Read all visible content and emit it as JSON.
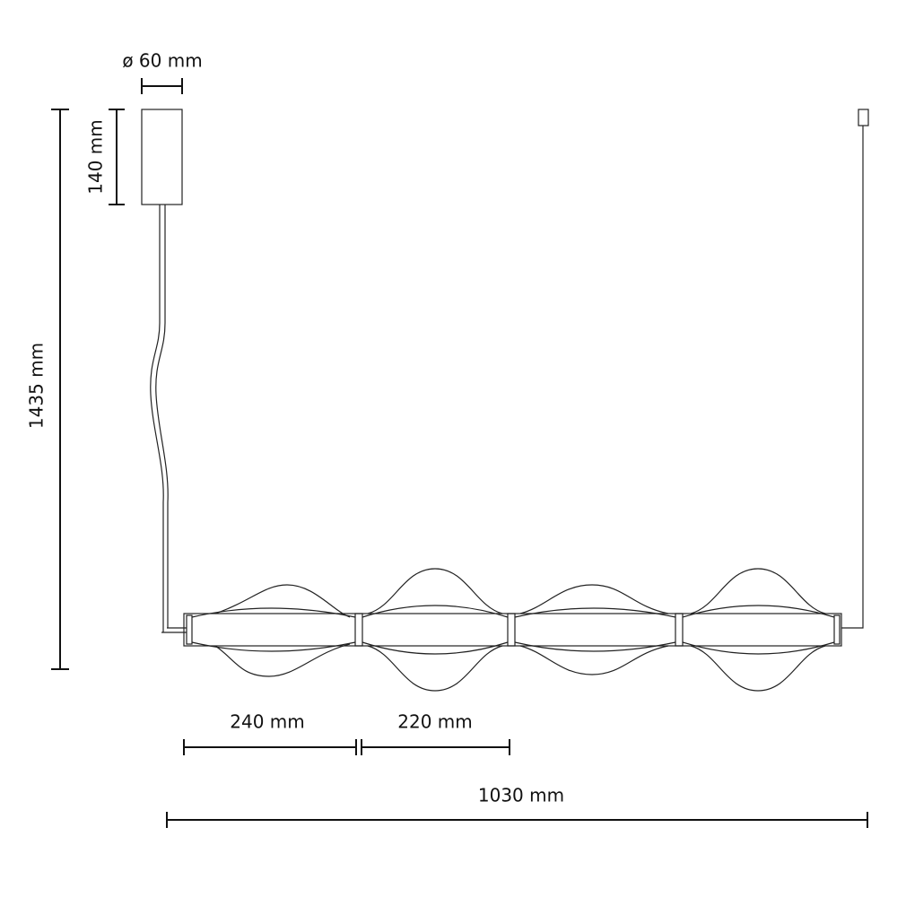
{
  "dimensions": {
    "diameter": "ø 60 mm",
    "canopy_height": "140 mm",
    "total_height": "1435 mm",
    "first_segment": "240 mm",
    "segment": "220 mm",
    "total_length": "1030 mm"
  }
}
